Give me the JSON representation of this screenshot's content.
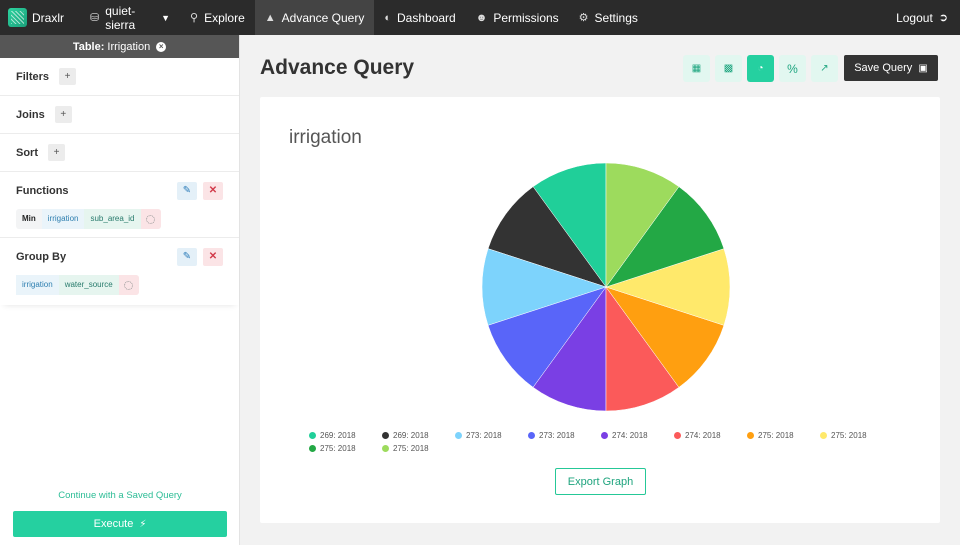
{
  "nav": {
    "brand": "Draxlr",
    "database": "quiet-sierra",
    "items": [
      {
        "label": "Explore",
        "icon": "search-icon"
      },
      {
        "label": "Advance Query",
        "icon": "chart-area-icon"
      },
      {
        "label": "Dashboard",
        "icon": "dashboard-icon"
      },
      {
        "label": "Permissions",
        "icon": "users-icon"
      },
      {
        "label": "Settings",
        "icon": "gear-icon"
      }
    ],
    "logout": "Logout"
  },
  "sidebar": {
    "table_prefix": "Table:",
    "table_name": "Irrigation",
    "filters": "Filters",
    "joins": "Joins",
    "sort": "Sort",
    "functions": {
      "title": "Functions",
      "chip": {
        "fn": "Min",
        "table": "irrigation",
        "column": "sub_area_id"
      }
    },
    "group_by": {
      "title": "Group By",
      "chip": {
        "table": "irrigation",
        "column": "water_source"
      }
    },
    "saved_link": "Continue with a Saved Query",
    "execute": "Execute"
  },
  "main": {
    "title": "Advance Query",
    "view_buttons": [
      "table-view",
      "bar-chart",
      "pie-chart",
      "percent",
      "line-chart"
    ],
    "active_view": "pie-chart",
    "save_query": "Save Query",
    "export": "Export Graph"
  },
  "chart_data": {
    "type": "pie",
    "title": "irrigation",
    "legend_placement": "bottom",
    "slices": [
      {
        "label": "269: 2018",
        "value": 1,
        "color": "#20cf99"
      },
      {
        "label": "269: 2018",
        "value": 1,
        "color": "#333333"
      },
      {
        "label": "273: 2018",
        "value": 1,
        "color": "#7dd3fc"
      },
      {
        "label": "273: 2018",
        "value": 1,
        "color": "#5965f9"
      },
      {
        "label": "274: 2018",
        "value": 1,
        "color": "#7a3fe4"
      },
      {
        "label": "274: 2018",
        "value": 1,
        "color": "#fb5a5a"
      },
      {
        "label": "275: 2018",
        "value": 1,
        "color": "#ff9f10"
      },
      {
        "label": "275: 2018",
        "value": 1,
        "color": "#ffe96b"
      },
      {
        "label": "275: 2018",
        "value": 1,
        "color": "#23a845"
      },
      {
        "label": "275: 2018",
        "value": 1,
        "color": "#9ddb5d"
      }
    ]
  }
}
